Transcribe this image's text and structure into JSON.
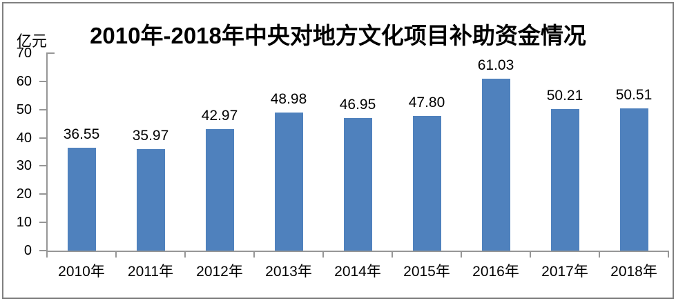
{
  "chart_data": {
    "type": "bar",
    "title": "2010年-2018年中央对地方文化项目补助资金情况",
    "unit_label": "亿元",
    "ylabel": "亿元",
    "xlabel": "",
    "categories": [
      "2010年",
      "2011年",
      "2012年",
      "2013年",
      "2014年",
      "2015年",
      "2016年",
      "2017年",
      "2018年"
    ],
    "values": [
      36.55,
      35.97,
      42.97,
      48.98,
      46.95,
      47.8,
      61.03,
      50.21,
      50.51
    ],
    "value_labels": [
      "36.55",
      "35.97",
      "42.97",
      "48.98",
      "46.95",
      "47.80",
      "61.03",
      "50.21",
      "50.51"
    ],
    "ylim": [
      0,
      70
    ],
    "yticks": [
      0,
      10,
      20,
      30,
      40,
      50,
      60,
      70
    ],
    "grid": false,
    "legend": false,
    "data_labels_position": "above-bars",
    "bar_color": "#4F81BD",
    "axis_color": "#969696",
    "frame_color": "#808080",
    "text_color": "#000000",
    "background_color": "#FFFFFF"
  }
}
